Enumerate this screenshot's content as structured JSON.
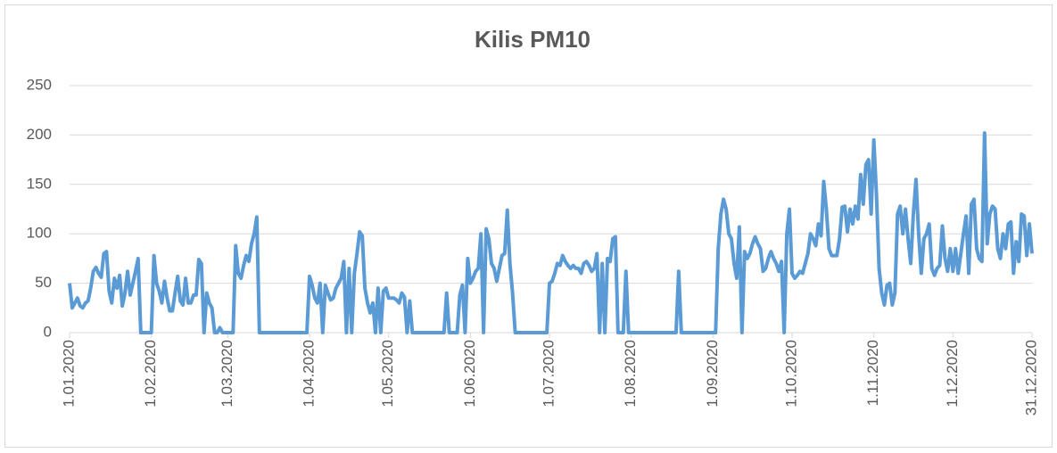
{
  "chart_data": {
    "type": "line",
    "title": "Kilis PM10",
    "color": "#5b9bd5",
    "grid": true,
    "ylim": [
      0,
      250
    ],
    "yticks": [
      0,
      50,
      100,
      150,
      200,
      250
    ],
    "categories": [
      "1.01.2020",
      null,
      null,
      null,
      null,
      null,
      null,
      null,
      null,
      null,
      null,
      null,
      null,
      null,
      null,
      null,
      null,
      null,
      null,
      null,
      null,
      null,
      null,
      null,
      null,
      null,
      null,
      null,
      null,
      null,
      null,
      "1.02.2020",
      null,
      null,
      null,
      null,
      null,
      null,
      null,
      null,
      null,
      null,
      null,
      null,
      null,
      null,
      null,
      null,
      null,
      null,
      null,
      null,
      null,
      null,
      null,
      null,
      null,
      null,
      null,
      null,
      "1.03.2020",
      null,
      null,
      null,
      null,
      null,
      null,
      null,
      null,
      null,
      null,
      null,
      null,
      null,
      null,
      null,
      null,
      null,
      null,
      null,
      null,
      null,
      null,
      null,
      null,
      null,
      null,
      null,
      null,
      null,
      null,
      "1.04.2020",
      null,
      null,
      null,
      null,
      null,
      null,
      null,
      null,
      null,
      null,
      null,
      null,
      null,
      null,
      null,
      null,
      null,
      null,
      null,
      null,
      null,
      null,
      null,
      null,
      null,
      null,
      null,
      null,
      null,
      "1.05.2020",
      null,
      null,
      null,
      null,
      null,
      null,
      null,
      null,
      null,
      null,
      null,
      null,
      null,
      null,
      null,
      null,
      null,
      null,
      null,
      null,
      null,
      null,
      null,
      null,
      null,
      null,
      null,
      null,
      null,
      null,
      "1.06.2020",
      null,
      null,
      null,
      null,
      null,
      null,
      null,
      null,
      null,
      null,
      null,
      null,
      null,
      null,
      null,
      null,
      null,
      null,
      null,
      null,
      null,
      null,
      null,
      null,
      null,
      null,
      null,
      null,
      null,
      "1.07.2020",
      null,
      null,
      null,
      null,
      null,
      null,
      null,
      null,
      null,
      null,
      null,
      null,
      null,
      null,
      null,
      null,
      null,
      null,
      null,
      null,
      null,
      null,
      null,
      null,
      null,
      null,
      null,
      null,
      null,
      null,
      "1.08.2020",
      null,
      null,
      null,
      null,
      null,
      null,
      null,
      null,
      null,
      null,
      null,
      null,
      null,
      null,
      null,
      null,
      null,
      null,
      null,
      null,
      null,
      null,
      null,
      null,
      null,
      null,
      null,
      null,
      null,
      null,
      "1.09.2020",
      null,
      null,
      null,
      null,
      null,
      null,
      null,
      null,
      null,
      null,
      null,
      null,
      null,
      null,
      null,
      null,
      null,
      null,
      null,
      null,
      null,
      null,
      null,
      null,
      null,
      null,
      null,
      null,
      null,
      "1.10.2020",
      null,
      null,
      null,
      null,
      null,
      null,
      null,
      null,
      null,
      null,
      null,
      null,
      null,
      null,
      null,
      null,
      null,
      null,
      null,
      null,
      null,
      null,
      null,
      null,
      null,
      null,
      null,
      null,
      null,
      null,
      "1.11.2020",
      null,
      null,
      null,
      null,
      null,
      null,
      null,
      null,
      null,
      null,
      null,
      null,
      null,
      null,
      null,
      null,
      null,
      null,
      null,
      null,
      null,
      null,
      null,
      null,
      null,
      null,
      null,
      null,
      null,
      "1.12.2020",
      null,
      null,
      null,
      null,
      null,
      null,
      null,
      null,
      null,
      null,
      null,
      null,
      null,
      null,
      null,
      null,
      null,
      null,
      null,
      null,
      null,
      null,
      null,
      null,
      null,
      null,
      null,
      null,
      null,
      "31.12.2020"
    ],
    "values": [
      50,
      25,
      30,
      35,
      27,
      25,
      30,
      32,
      45,
      62,
      66,
      60,
      56,
      80,
      82,
      42,
      30,
      55,
      45,
      58,
      27,
      40,
      62,
      38,
      50,
      62,
      75,
      0,
      0,
      0,
      0,
      0,
      78,
      50,
      42,
      30,
      52,
      35,
      22,
      22,
      40,
      57,
      32,
      28,
      55,
      30,
      30,
      38,
      38,
      74,
      70,
      0,
      40,
      30,
      25,
      0,
      0,
      5,
      0,
      0,
      0,
      0,
      0,
      88,
      60,
      55,
      68,
      78,
      72,
      90,
      100,
      117,
      0,
      0,
      0,
      0,
      0,
      0,
      0,
      0,
      0,
      0,
      0,
      0,
      0,
      0,
      0,
      0,
      0,
      0,
      0,
      57,
      48,
      35,
      30,
      50,
      0,
      48,
      40,
      33,
      35,
      45,
      50,
      55,
      72,
      0,
      65,
      0,
      60,
      80,
      102,
      98,
      45,
      30,
      20,
      30,
      0,
      45,
      0,
      42,
      45,
      35,
      35,
      35,
      33,
      30,
      40,
      36,
      0,
      32,
      0,
      0,
      0,
      0,
      0,
      0,
      0,
      0,
      0,
      0,
      0,
      0,
      0,
      40,
      0,
      0,
      0,
      0,
      38,
      48,
      0,
      75,
      50,
      55,
      62,
      65,
      100,
      0,
      105,
      95,
      70,
      65,
      52,
      65,
      78,
      80,
      124,
      70,
      40,
      0,
      0,
      0,
      0,
      0,
      0,
      0,
      0,
      0,
      0,
      0,
      0,
      0,
      50,
      52,
      60,
      70,
      68,
      78,
      72,
      68,
      65,
      68,
      65,
      65,
      60,
      70,
      72,
      68,
      62,
      65,
      80,
      0,
      70,
      0,
      75,
      72,
      95,
      97,
      0,
      0,
      0,
      62,
      0,
      0,
      0,
      0,
      0,
      0,
      0,
      0,
      0,
      0,
      0,
      0,
      0,
      0,
      0,
      0,
      0,
      0,
      0,
      62,
      0,
      0,
      0,
      0,
      0,
      0,
      0,
      0,
      0,
      0,
      0,
      0,
      0,
      0,
      85,
      120,
      135,
      125,
      100,
      95,
      70,
      55,
      107,
      0,
      82,
      75,
      80,
      90,
      97,
      90,
      85,
      62,
      65,
      75,
      82,
      75,
      70,
      62,
      72,
      0,
      100,
      125,
      60,
      55,
      58,
      62,
      60,
      70,
      80,
      100,
      95,
      88,
      110,
      98,
      153,
      125,
      85,
      78,
      78,
      78,
      95,
      127,
      128,
      102,
      125,
      110,
      128,
      115,
      160,
      130,
      170,
      175,
      120,
      195,
      140,
      65,
      40,
      28,
      48,
      50,
      28,
      40,
      120,
      128,
      100,
      125,
      95,
      70,
      120,
      155,
      100,
      60,
      95,
      100,
      110,
      65,
      58,
      65,
      68,
      108,
      75,
      62,
      85,
      62,
      85,
      60,
      80,
      100,
      118,
      60,
      130,
      135,
      85,
      75,
      72,
      202,
      90,
      120,
      128,
      125,
      85,
      75,
      100,
      85,
      110,
      112,
      60,
      92,
      72,
      120,
      118,
      78,
      110,
      80
    ]
  }
}
